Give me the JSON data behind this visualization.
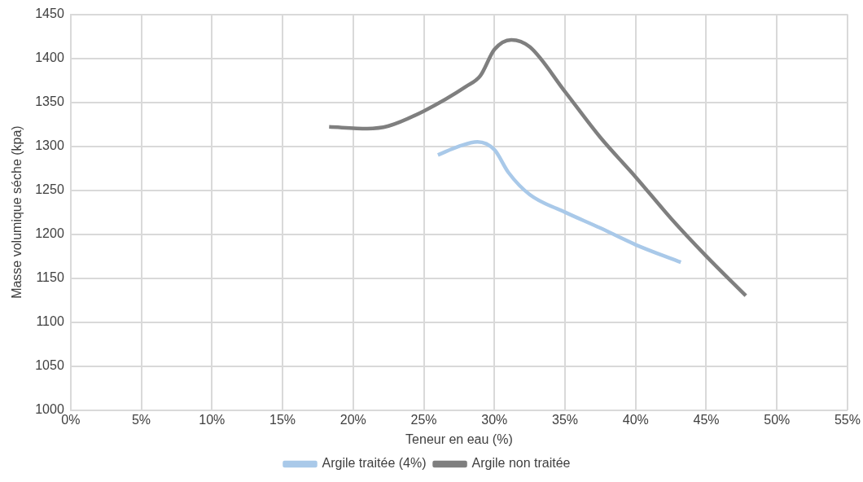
{
  "chart_data": {
    "type": "line",
    "xlabel": "Teneur en eau (%)",
    "ylabel": "Masse volumique séche (kpa)",
    "xlim": [
      0,
      55
    ],
    "xticks": [
      {
        "value": 0,
        "label": "0%"
      },
      {
        "value": 5,
        "label": "5%"
      },
      {
        "value": 10,
        "label": "10%"
      },
      {
        "value": 15,
        "label": "15%"
      },
      {
        "value": 20,
        "label": "20%"
      },
      {
        "value": 25,
        "label": "25%"
      },
      {
        "value": 30,
        "label": "30%"
      },
      {
        "value": 35,
        "label": "35%"
      },
      {
        "value": 40,
        "label": "40%"
      },
      {
        "value": 45,
        "label": "45%"
      },
      {
        "value": 50,
        "label": "50%"
      },
      {
        "value": 55,
        "label": "55%"
      }
    ],
    "ylim": [
      1000,
      1450
    ],
    "yticks": [
      1000,
      1050,
      1100,
      1150,
      1200,
      1250,
      1300,
      1350,
      1400,
      1450
    ],
    "grid": true,
    "legend": "bottom",
    "marker": "none",
    "line_style": "solid",
    "series": [
      {
        "name": "Argile traitée (4%)",
        "color": "#a9c9e9",
        "x": [
          26,
          27.5,
          28.8,
          30,
          31,
          32.5,
          35,
          37.5,
          40,
          43.2
        ],
        "values": [
          1290,
          1300,
          1305,
          1296,
          1270,
          1245,
          1225,
          1207,
          1188,
          1168
        ]
      },
      {
        "name": "Argile non traitée",
        "color": "#7f7f7f",
        "x": [
          18.3,
          21,
          22.5,
          25,
          28,
          29,
          30,
          31.2,
          32.5,
          35,
          37.5,
          40,
          42.5,
          45,
          47.8
        ],
        "values": [
          1322,
          1320,
          1323,
          1340,
          1368,
          1380,
          1410,
          1421,
          1413,
          1362,
          1310,
          1265,
          1218,
          1175,
          1130
        ]
      }
    ]
  }
}
